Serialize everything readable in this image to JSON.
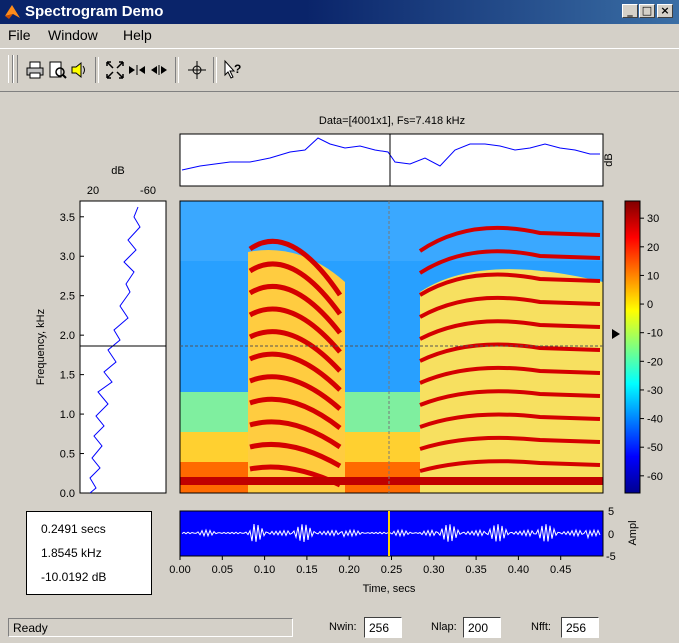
{
  "window": {
    "title": "Spectrogram Demo",
    "buttons": [
      "_",
      "□",
      "×"
    ]
  },
  "menu": [
    {
      "label": "File",
      "accel": "F"
    },
    {
      "label": "Window",
      "accel": "W"
    },
    {
      "label": "Help",
      "accel": "H"
    }
  ],
  "toolbar": {
    "icons": [
      "print-icon",
      "print-preview-icon",
      "speaker-icon",
      "zoom-full-icon",
      "zoom-in-x-icon",
      "zoom-out-x-icon",
      "crosshair-icon",
      "whats-this-icon"
    ]
  },
  "plot": {
    "header": "Data=[4001x1], Fs=7.418 kHz",
    "top_unit": "dB",
    "left_unit": "dB",
    "left_ticks_x": [
      "20",
      "-60"
    ],
    "freq_label": "Frequency, kHz",
    "freq_ticks": [
      "0.0",
      "0.5",
      "1.0",
      "1.5",
      "2.0",
      "2.5",
      "3.0",
      "3.5"
    ],
    "time_label": "Time, secs",
    "time_ticks": [
      "0.00",
      "0.05",
      "0.10",
      "0.15",
      "0.20",
      "0.25",
      "0.30",
      "0.35",
      "0.40",
      "0.45"
    ],
    "colorbar_ticks": [
      "30",
      "20",
      "10",
      "0",
      "-10",
      "-20",
      "-30",
      "-40",
      "-50",
      "-60"
    ],
    "ampl_label": "Ampl",
    "ampl_ticks": [
      "5",
      "0",
      "-5"
    ]
  },
  "readout": {
    "time": "0.2491 secs",
    "freq": "1.8545 kHz",
    "level": "-10.0192 dB"
  },
  "status": {
    "text": "Ready",
    "nwin_label": "Nwin:",
    "nwin": "256",
    "nlap_label": "Nlap:",
    "nlap": "200",
    "nfft_label": "Nfft:",
    "nfft": "256"
  },
  "colors": {
    "title_bar": "#0a246a",
    "face": "#d4d0c8",
    "trace": "#0000ff",
    "cursor_time": "#ffd400"
  }
}
